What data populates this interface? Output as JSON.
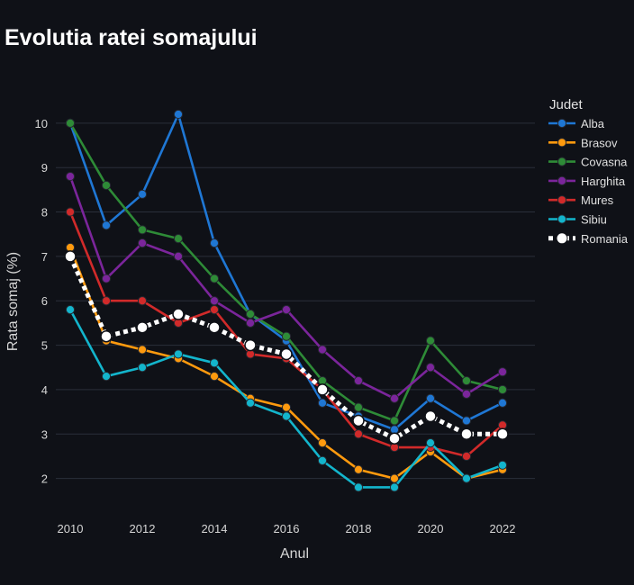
{
  "chart_data": {
    "type": "line",
    "title": "Evolutia ratei somajului",
    "xlabel": "Anul",
    "ylabel": "Rata somaj (%)",
    "legend_title": "Judet",
    "legend_position": "right",
    "grid": true,
    "x": [
      2010,
      2011,
      2012,
      2013,
      2014,
      2015,
      2016,
      2017,
      2018,
      2019,
      2020,
      2021,
      2022
    ],
    "x_ticks": [
      2010,
      2012,
      2014,
      2016,
      2018,
      2020,
      2022
    ],
    "y_ticks": [
      2,
      3,
      4,
      5,
      6,
      7,
      8,
      9,
      10
    ],
    "xlim": [
      2009.6,
      2022.9
    ],
    "ylim": [
      1.1,
      10.95
    ],
    "series": [
      {
        "name": "Alba",
        "color": "#1f77d4",
        "dash": "solid",
        "values": [
          10.0,
          7.7,
          8.4,
          10.2,
          7.3,
          5.7,
          5.1,
          3.7,
          3.4,
          3.1,
          3.8,
          3.3,
          3.7
        ]
      },
      {
        "name": "Brasov",
        "color": "#ff9a0e",
        "dash": "solid",
        "values": [
          7.2,
          5.1,
          4.9,
          4.7,
          4.3,
          3.8,
          3.6,
          2.8,
          2.2,
          2.0,
          2.6,
          2.0,
          2.2
        ]
      },
      {
        "name": "Covasna",
        "color": "#2e8b37",
        "dash": "solid",
        "values": [
          10.0,
          8.6,
          7.6,
          7.4,
          6.5,
          5.7,
          5.2,
          4.2,
          3.6,
          3.3,
          5.1,
          4.2,
          4.0
        ]
      },
      {
        "name": "Harghita",
        "color": "#7b259b",
        "dash": "solid",
        "values": [
          8.8,
          6.5,
          7.3,
          7.0,
          6.0,
          5.5,
          5.8,
          4.9,
          4.2,
          3.8,
          4.5,
          3.9,
          4.4
        ]
      },
      {
        "name": "Mures",
        "color": "#d12a2a",
        "dash": "solid",
        "values": [
          8.0,
          6.0,
          6.0,
          5.5,
          5.8,
          4.8,
          4.7,
          4.0,
          3.0,
          2.7,
          2.7,
          2.5,
          3.2
        ]
      },
      {
        "name": "Sibiu",
        "color": "#13b5cc",
        "dash": "solid",
        "values": [
          5.8,
          4.3,
          4.5,
          4.8,
          4.6,
          3.7,
          3.4,
          2.4,
          1.8,
          1.8,
          2.8,
          2.0,
          2.3
        ]
      },
      {
        "name": "Romania",
        "color": "#ffffff",
        "dash": "dotted",
        "values": [
          7.0,
          5.2,
          5.4,
          5.7,
          5.4,
          5.0,
          4.8,
          4.0,
          3.3,
          2.9,
          3.4,
          3.0,
          3.0
        ]
      }
    ]
  }
}
